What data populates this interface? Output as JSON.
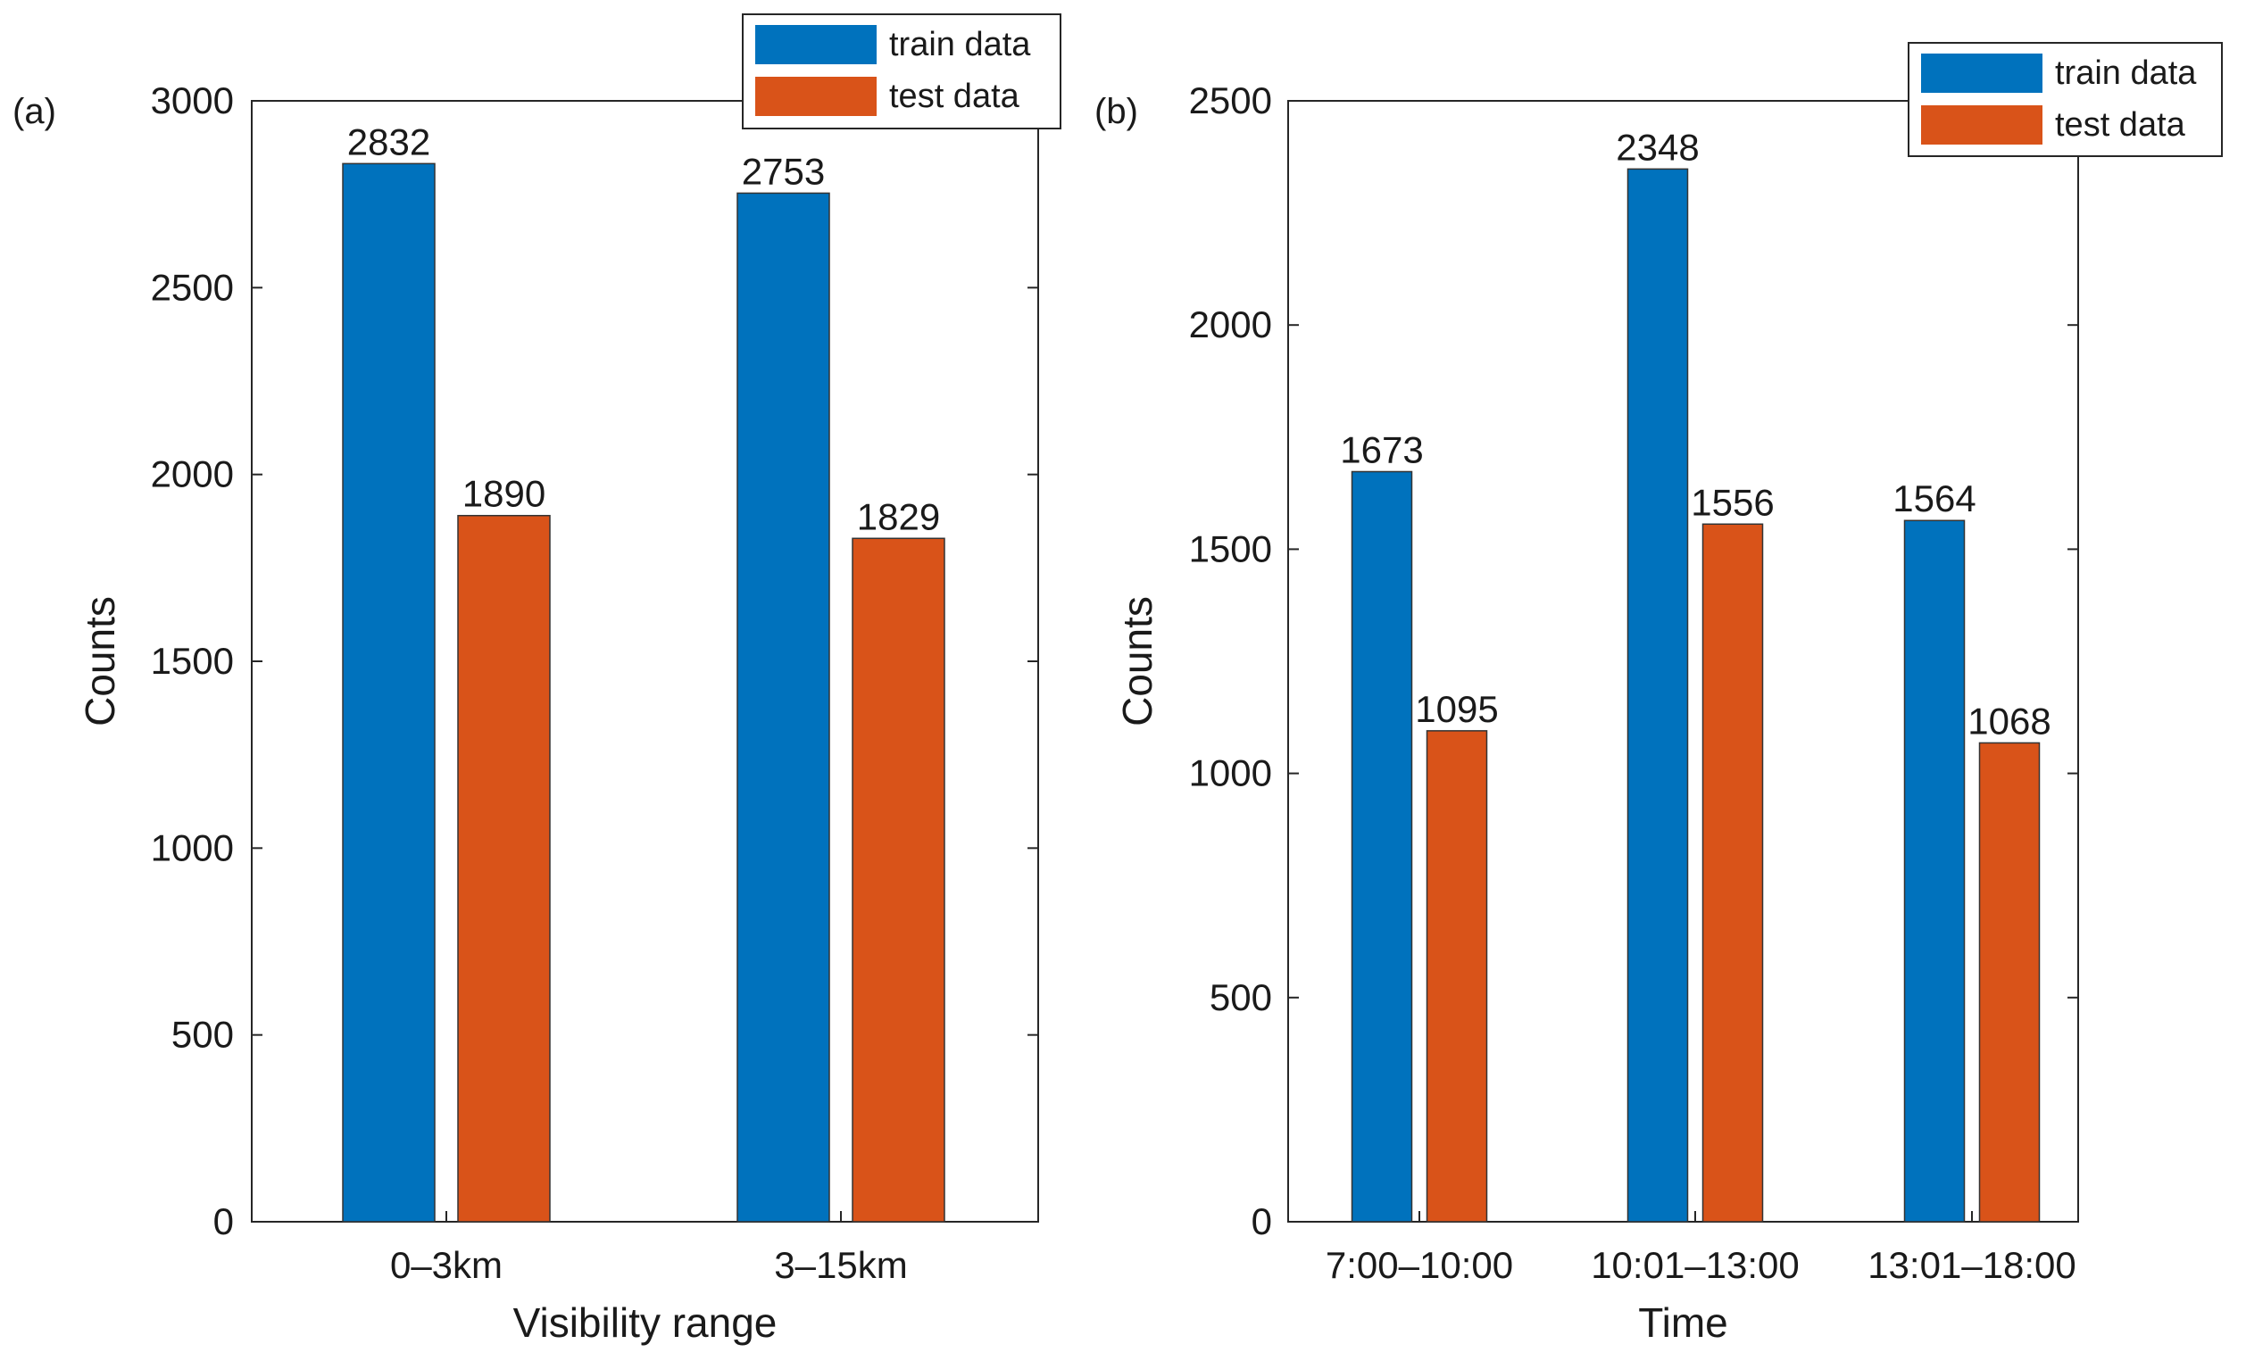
{
  "colors": {
    "train": "#0072bd",
    "test": "#d95319",
    "axis": "#262626"
  },
  "chart_data": [
    {
      "type": "bar",
      "panel": "(a)",
      "categories": [
        "0–3km",
        "3–15km"
      ],
      "series": [
        {
          "name": "train data",
          "values": [
            2832,
            2753
          ]
        },
        {
          "name": "test data",
          "values": [
            1890,
            1829
          ]
        }
      ],
      "data_labels": {
        "train": [
          "2832",
          "2753"
        ],
        "test": [
          "1890",
          "1829"
        ]
      },
      "xlabel": "Visibility range",
      "ylabel": "Counts",
      "ylim": [
        0,
        3000
      ],
      "yticks": [
        0,
        500,
        1000,
        1500,
        2000,
        2500,
        3000
      ],
      "ytick_labels": [
        "0",
        "500",
        "1000",
        "1500",
        "2000",
        "2500",
        "3000"
      ],
      "legend": {
        "position": "top-right",
        "entries": [
          "train data",
          "test data"
        ]
      }
    },
    {
      "type": "bar",
      "panel": "(b)",
      "categories": [
        "7:00–10:00",
        "10:01–13:00",
        "13:01–18:00"
      ],
      "series": [
        {
          "name": "train data",
          "values": [
            1673,
            2348,
            1564
          ]
        },
        {
          "name": "test data",
          "values": [
            1095,
            1556,
            1068
          ]
        }
      ],
      "data_labels": {
        "train": [
          "1673",
          "2348",
          "1564"
        ],
        "test": [
          "1095",
          "1556",
          "1068"
        ]
      },
      "xlabel": "Time",
      "ylabel": "Counts",
      "ylim": [
        0,
        2500
      ],
      "yticks": [
        0,
        500,
        1000,
        1500,
        2000,
        2500
      ],
      "ytick_labels": [
        "0",
        "500",
        "1000",
        "1500",
        "2000",
        "2500"
      ],
      "legend": {
        "position": "top-right",
        "entries": [
          "train data",
          "test data"
        ]
      }
    }
  ]
}
